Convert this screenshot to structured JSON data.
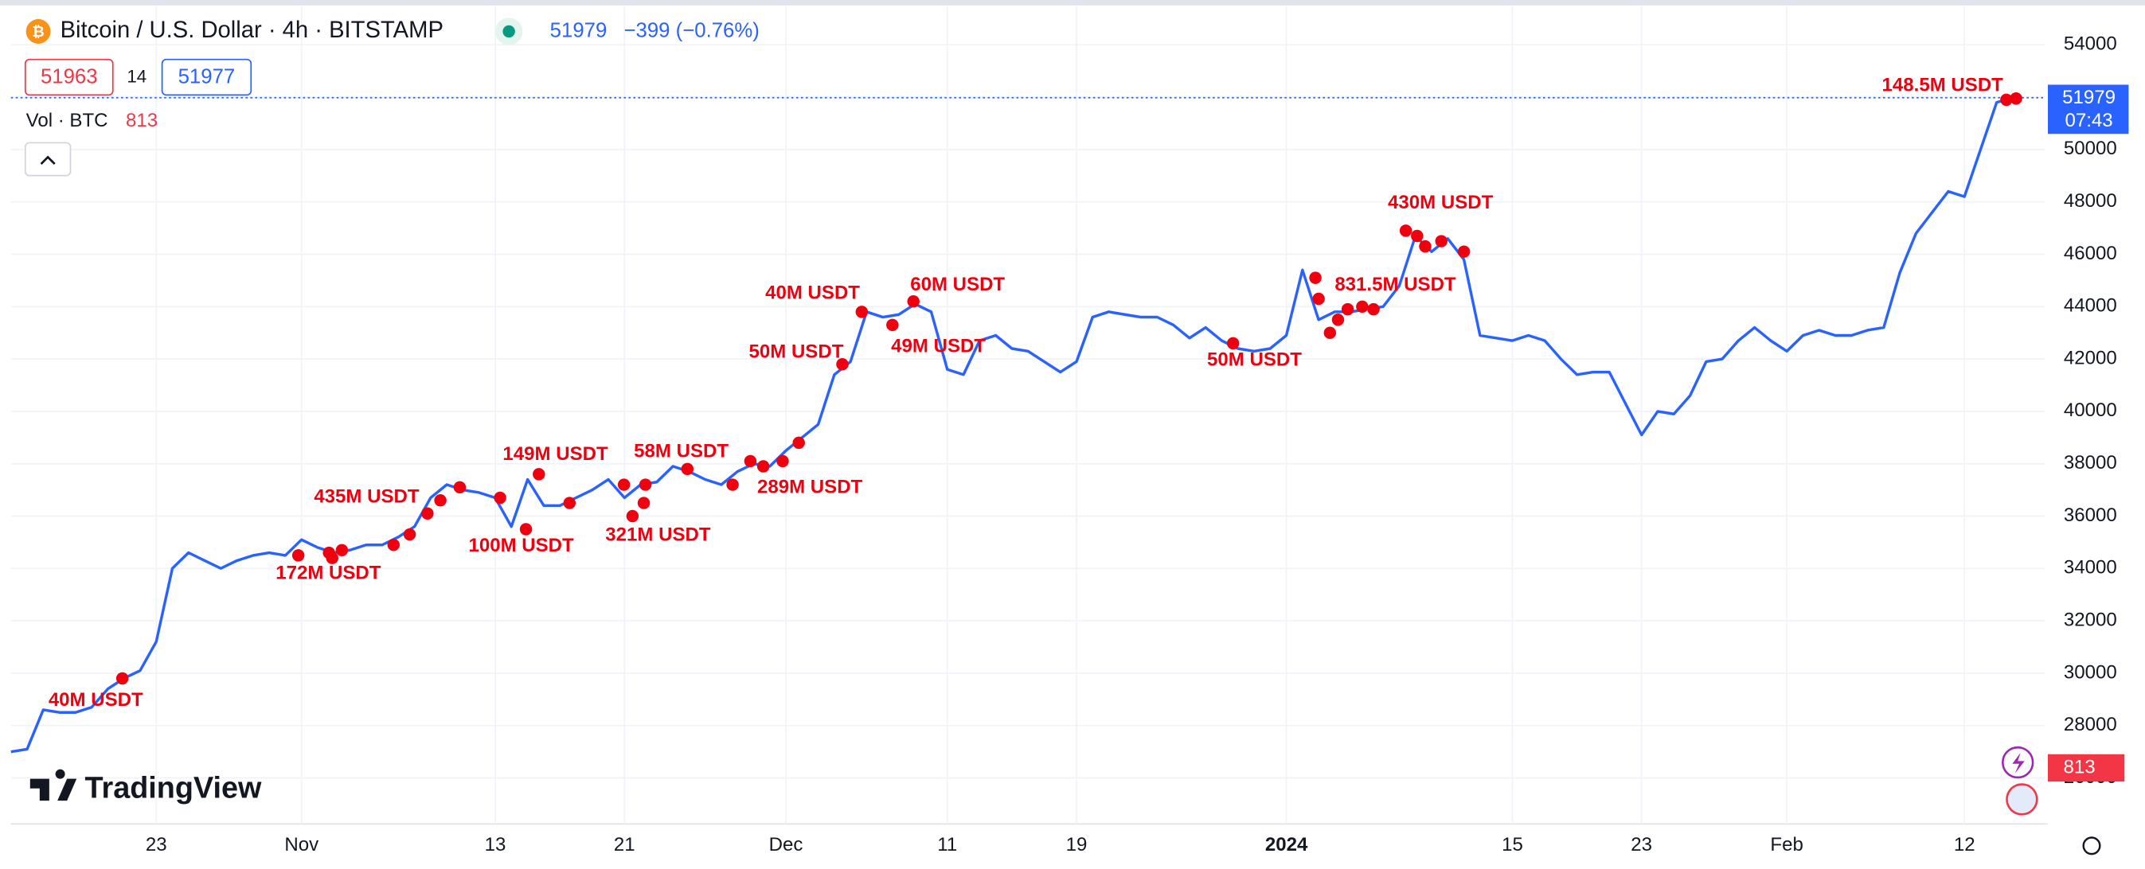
{
  "header": {
    "symbol": "Bitcoin / U.S. Dollar · 4h · BITSTAMP",
    "last": 51979,
    "change": "−399 (−0.76%)",
    "bid": 51963,
    "spread": 14,
    "ask": 51977,
    "vol_label": "Vol · BTC",
    "vol_value": 813,
    "countdown": "07:43",
    "logo": "TradingView"
  },
  "chart_data": {
    "type": "line",
    "ylim": [
      24400,
      55450
    ],
    "yticks": [
      26000,
      28000,
      30000,
      32000,
      34000,
      36000,
      38000,
      40000,
      42000,
      44000,
      46000,
      48000,
      50000,
      52000,
      54000
    ],
    "xlim": [
      0,
      126
    ],
    "xticks": [
      {
        "value": 9,
        "label": "23"
      },
      {
        "value": 18,
        "label": "Nov"
      },
      {
        "value": 30,
        "label": "13"
      },
      {
        "value": 38,
        "label": "21"
      },
      {
        "value": 48,
        "label": "Dec"
      },
      {
        "value": 58,
        "label": "11"
      },
      {
        "value": 66,
        "label": "19"
      },
      {
        "value": 79,
        "label": "2024"
      },
      {
        "value": 93,
        "label": "15"
      },
      {
        "value": 101,
        "label": "23"
      },
      {
        "value": 110,
        "label": "Feb"
      },
      {
        "value": 121,
        "label": "12"
      }
    ],
    "grid": true,
    "last_price": 51979,
    "series": [
      {
        "color": "#2962ff",
        "values": [
          27000,
          27100,
          28600,
          28500,
          28500,
          28700,
          29400,
          29800,
          30100,
          31200,
          34000,
          34600,
          34300,
          34000,
          34300,
          34500,
          34600,
          34500,
          35100,
          34800,
          34600,
          34700,
          34900,
          34900,
          35200,
          35600,
          36700,
          37200,
          37000,
          36900,
          36700,
          35600,
          37400,
          36400,
          36400,
          36700,
          37000,
          37400,
          36700,
          37200,
          37300,
          37900,
          37700,
          37400,
          37200,
          37700,
          38000,
          37900,
          38500,
          39000,
          39500,
          41400,
          41900,
          43800,
          43600,
          43700,
          44100,
          43800,
          41600,
          41400,
          42700,
          42900,
          42400,
          42300,
          41900,
          41500,
          41900,
          43600,
          43800,
          43700,
          43600,
          43600,
          43300,
          42800,
          43200,
          42700,
          42400,
          42300,
          42400,
          42900,
          45400,
          43500,
          43800,
          43800,
          43900,
          44000,
          44800,
          46700,
          46100,
          46600,
          45800,
          42900,
          42800,
          42700,
          42900,
          42700,
          42000,
          41400,
          41500,
          41500,
          40300,
          39100,
          40000,
          39900,
          40600,
          41900,
          42000,
          42700,
          43200,
          42700,
          42300,
          42900,
          43100,
          42900,
          42900,
          43100,
          43200,
          45300,
          46800,
          47600,
          48400,
          48200,
          50000,
          51800,
          51979
        ]
      }
    ],
    "annotations": [
      {
        "text": "40M USDT",
        "points": [
          [
            6.9,
            29800
          ]
        ]
      },
      {
        "text": "172M USDT",
        "points": [
          [
            17.8,
            34500
          ],
          [
            19.7,
            34600
          ],
          [
            19.9,
            34400
          ],
          [
            20.5,
            34700
          ]
        ]
      },
      {
        "text": "435M USDT",
        "points": [
          [
            23.7,
            34900
          ],
          [
            24.7,
            35300
          ],
          [
            25.8,
            36100
          ],
          [
            26.6,
            36600
          ],
          [
            27.8,
            37100
          ]
        ]
      },
      {
        "text": "100M USDT",
        "points": [
          [
            30.3,
            36700
          ],
          [
            31.9,
            35500
          ]
        ]
      },
      {
        "text": "149M USDT",
        "points": [
          [
            32.7,
            37600
          ]
        ]
      },
      {
        "text": "321M USDT",
        "points": [
          [
            34.6,
            36500
          ],
          [
            37.97,
            37200
          ],
          [
            38.5,
            36000
          ],
          [
            39.2,
            36500
          ],
          [
            39.3,
            37200
          ]
        ]
      },
      {
        "text": "58M USDT",
        "points": [
          [
            41.9,
            37800
          ]
        ]
      },
      {
        "text": "289M USDT",
        "points": [
          [
            44.7,
            37200
          ],
          [
            45.8,
            38100
          ],
          [
            46.6,
            37900
          ],
          [
            47.8,
            38100
          ],
          [
            48.8,
            38800
          ]
        ]
      },
      {
        "text": "50M USDT",
        "points": [
          [
            51.5,
            41800
          ]
        ]
      },
      {
        "text": "40M USDT",
        "points": [
          [
            52.7,
            43800
          ]
        ]
      },
      {
        "text": "60M USDT",
        "points": [
          [
            55.9,
            44200
          ]
        ]
      },
      {
        "text": "49M USDT",
        "points": [
          [
            54.6,
            43300
          ]
        ]
      },
      {
        "text": "50M USDT",
        "points": [
          [
            75.7,
            42600
          ]
        ]
      },
      {
        "text": "831.5M USDT",
        "points": [
          [
            80.8,
            45100
          ],
          [
            81.0,
            44300
          ],
          [
            81.7,
            43000
          ],
          [
            82.2,
            43500
          ],
          [
            82.8,
            43900
          ],
          [
            83.7,
            44000
          ],
          [
            84.4,
            43900
          ]
        ]
      },
      {
        "text": "430M USDT",
        "points": [
          [
            86.4,
            46900
          ],
          [
            87.1,
            46700
          ],
          [
            87.6,
            46300
          ],
          [
            88.6,
            46500
          ],
          [
            90.0,
            46100
          ]
        ]
      },
      {
        "text": "148.5M USDT",
        "points": [
          [
            123.6,
            51900
          ],
          [
            124.2,
            51950
          ]
        ]
      }
    ]
  }
}
